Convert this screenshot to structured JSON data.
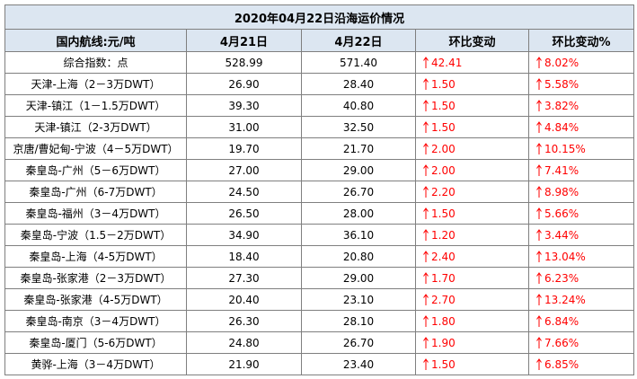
{
  "table": {
    "title": "2020年04月22日沿海运价情况",
    "headers": [
      "国内航线:元/吨",
      "4月21日",
      "4月22日",
      "环比变动",
      "环比变动%"
    ],
    "rows": [
      [
        "综合指数：点",
        "528.99",
        "571.40",
        "42.41",
        "8.02%"
      ],
      [
        "天津-上海（2－3万DWT）",
        "26.90",
        "28.40",
        "1.50",
        "5.58%"
      ],
      [
        "天津-镇江（1－1.5万DWT）",
        "39.30",
        "40.80",
        "1.50",
        "3.82%"
      ],
      [
        "天津-镇江（2-3万DWT）",
        "31.00",
        "32.50",
        "1.50",
        "4.84%"
      ],
      [
        "京唐/曹妃甸-宁波（4－5万DWT）",
        "19.70",
        "21.70",
        "2.00",
        "10.15%"
      ],
      [
        "秦皇岛-广州（5－6万DWT）",
        "27.00",
        "29.00",
        "2.00",
        "7.41%"
      ],
      [
        "秦皇岛-广州（6-7万DWT）",
        "24.50",
        "26.70",
        "2.20",
        "8.98%"
      ],
      [
        "秦皇岛-福州（3－4万DWT）",
        "26.50",
        "28.00",
        "1.50",
        "5.66%"
      ],
      [
        "秦皇岛-宁波（1.5－2万DWT）",
        "34.90",
        "36.10",
        "1.20",
        "3.44%"
      ],
      [
        "秦皇岛-上海（4-5万DWT）",
        "18.40",
        "20.80",
        "2.40",
        "13.04%"
      ],
      [
        "秦皇岛-张家港（2－3万DWT）",
        "27.30",
        "29.00",
        "1.70",
        "6.23%"
      ],
      [
        "秦皇岛-张家港（4-5万DWT）",
        "20.40",
        "23.10",
        "2.70",
        "13.24%"
      ],
      [
        "秦皇岛-南京（3－4万DWT）",
        "26.30",
        "28.10",
        "1.80",
        "6.84%"
      ],
      [
        "秦皇岛-厦门（5-6万DWT）",
        "24.80",
        "26.70",
        "1.90",
        "7.66%"
      ],
      [
        "黄骅-上海（3－4万DWT）",
        "21.90",
        "23.40",
        "1.50",
        "6.85%"
      ]
    ]
  }
}
